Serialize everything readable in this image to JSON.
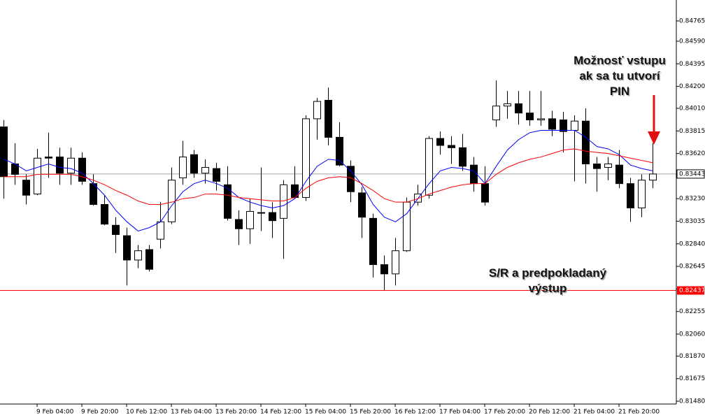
{
  "chart_data": {
    "type": "candlestick",
    "categories": [
      null,
      null,
      null,
      "9 Feb 04:00",
      null,
      null,
      null,
      "9 Feb 20:00",
      null,
      null,
      null,
      "10 Feb 12:00",
      null,
      null,
      null,
      "13 Feb 04:00",
      null,
      null,
      null,
      "13 Feb 20:00",
      null,
      null,
      null,
      "14 Feb 12:00",
      null,
      null,
      null,
      "15 Feb 04:00",
      null,
      null,
      null,
      "15 Feb 20:00",
      null,
      null,
      null,
      "16 Feb 12:00",
      null,
      null,
      null,
      "17 Feb 04:00",
      null,
      null,
      null,
      "17 Feb 20:00",
      null,
      null,
      null,
      "20 Feb 12:00",
      null,
      null,
      null,
      "21 Feb 04:00",
      null,
      null,
      null,
      "21 Feb 20:00",
      null,
      null,
      null
    ],
    "open": [
      0.8385,
      0.8353,
      0.8339,
      0.8327,
      0.8359,
      0.8359,
      0.8345,
      0.8358,
      0.8336,
      0.8318,
      0.83,
      0.8291,
      0.827,
      0.8279,
      0.8288,
      0.8303,
      0.8341,
      0.8361,
      0.8345,
      0.8349,
      0.8335,
      0.8305,
      0.8297,
      0.8311,
      0.8311,
      0.8306,
      0.8335,
      0.8324,
      0.8392,
      0.8408,
      0.8376,
      0.8351,
      0.8328,
      0.8306,
      0.8266,
      0.8258,
      0.8278,
      0.832,
      0.8326,
      0.8375,
      0.8369,
      0.8367,
      0.8352,
      0.8336,
      0.8391,
      0.8403,
      0.8405,
      0.8397,
      0.8391,
      0.8392,
      0.8391,
      0.8382,
      0.839,
      0.8353,
      0.835,
      0.8352,
      0.8336,
      0.8315,
      0.8339
    ],
    "high": [
      0.8391,
      0.8371,
      0.8344,
      0.8366,
      0.838,
      0.8367,
      0.8367,
      0.8363,
      0.8344,
      0.8326,
      0.8307,
      0.8298,
      0.8283,
      0.8283,
      0.832,
      0.835,
      0.8373,
      0.8365,
      0.8357,
      0.8354,
      0.8351,
      0.8313,
      0.8323,
      0.835,
      0.832,
      0.8339,
      0.8351,
      0.8395,
      0.841,
      0.8419,
      0.8389,
      0.8356,
      0.8333,
      0.831,
      0.8274,
      0.8289,
      0.8324,
      0.8335,
      0.8377,
      0.8381,
      0.8377,
      0.8379,
      0.8359,
      0.8351,
      0.8425,
      0.8416,
      0.8416,
      0.8416,
      0.8416,
      0.8399,
      0.8398,
      0.8395,
      0.8401,
      0.8359,
      0.8359,
      0.8365,
      0.8341,
      0.8344,
      0.8371
    ],
    "low": [
      0.8323,
      0.8335,
      0.8318,
      0.8326,
      0.8341,
      0.8335,
      0.8335,
      0.8335,
      0.8317,
      0.83,
      0.8276,
      0.8248,
      0.8263,
      0.826,
      0.828,
      0.8301,
      0.8335,
      0.8341,
      0.8336,
      0.833,
      0.8304,
      0.8283,
      0.8284,
      0.8295,
      0.8289,
      0.8271,
      0.8323,
      0.8321,
      0.8374,
      0.8369,
      0.8351,
      0.832,
      0.8289,
      0.8255,
      0.8244,
      0.8248,
      0.8277,
      0.8317,
      0.8323,
      0.8361,
      0.8353,
      0.8347,
      0.8329,
      0.8317,
      0.8385,
      0.8392,
      0.8387,
      0.8386,
      0.8386,
      0.8377,
      0.8363,
      0.8338,
      0.8336,
      0.8329,
      0.8339,
      0.8332,
      0.8303,
      0.8307,
      0.8332
    ],
    "close": [
      0.8342,
      0.8344,
      0.8326,
      0.8358,
      0.8358,
      0.8345,
      0.8358,
      0.8338,
      0.8318,
      0.8301,
      0.8292,
      0.827,
      0.8278,
      0.8262,
      0.8303,
      0.8339,
      0.8359,
      0.8345,
      0.835,
      0.8338,
      0.8306,
      0.8297,
      0.8312,
      0.8311,
      0.8304,
      0.8335,
      0.8324,
      0.8392,
      0.8407,
      0.8376,
      0.8352,
      0.8329,
      0.8307,
      0.8266,
      0.8258,
      0.8278,
      0.832,
      0.8327,
      0.8375,
      0.8369,
      0.8367,
      0.8351,
      0.8336,
      0.832,
      0.8403,
      0.8405,
      0.8397,
      0.8391,
      0.8392,
      0.8383,
      0.8381,
      0.839,
      0.8353,
      0.8349,
      0.8353,
      0.8336,
      0.8315,
      0.8339,
      0.83443
    ],
    "up_color": "#ffffff",
    "down_color": "#000000",
    "series": [
      {
        "color": "#0000ff",
        "values": [
          0.8357,
          0.8353,
          0.8347,
          0.835,
          0.8353,
          0.835,
          0.8349,
          0.8345,
          0.8336,
          0.8326,
          0.8313,
          0.8303,
          0.8295,
          0.8298,
          0.8303,
          0.8317,
          0.8329,
          0.8336,
          0.8339,
          0.8336,
          0.8332,
          0.8324,
          0.832,
          0.8317,
          0.8315,
          0.8317,
          0.8323,
          0.8338,
          0.8351,
          0.8357,
          0.8356,
          0.8347,
          0.8335,
          0.8318,
          0.8307,
          0.8303,
          0.831,
          0.8323,
          0.8336,
          0.8347,
          0.835,
          0.8349,
          0.8347,
          0.8336,
          0.8351,
          0.8365,
          0.8374,
          0.838,
          0.8382,
          0.8382,
          0.8382,
          0.8382,
          0.8376,
          0.8368,
          0.8366,
          0.8361,
          0.8352,
          0.8349,
          0.8347
        ]
      },
      {
        "color": "#ff0000",
        "values": [
          0.8342,
          0.8342,
          0.8342,
          0.8344,
          0.8344,
          0.8344,
          0.8344,
          0.8342,
          0.8339,
          0.8335,
          0.833,
          0.8326,
          0.8321,
          0.8318,
          0.8318,
          0.832,
          0.8323,
          0.8324,
          0.8327,
          0.8327,
          0.8326,
          0.8324,
          0.8323,
          0.8322,
          0.8321,
          0.8321,
          0.8324,
          0.8332,
          0.8338,
          0.8341,
          0.8342,
          0.8341,
          0.8336,
          0.833,
          0.8323,
          0.832,
          0.832,
          0.8323,
          0.8327,
          0.833,
          0.8333,
          0.8335,
          0.8336,
          0.8336,
          0.8344,
          0.835,
          0.8354,
          0.8357,
          0.8359,
          0.8362,
          0.8365,
          0.8366,
          0.8364,
          0.8363,
          0.8362,
          0.836,
          0.8358,
          0.8356,
          0.8354
        ]
      }
    ],
    "ylim": [
      0.81456,
      0.84946
    ],
    "yticks": [
      0.84765,
      {
        "value": 0.8459,
        "label": "0.84590"
      },
      0.84395,
      {
        "value": 0.842,
        "label": "0.84200"
      },
      {
        "value": 0.8401,
        "label": "0.84010"
      },
      0.83815,
      {
        "value": 0.8362,
        "label": "0.83620"
      },
      {
        "value": 0.8323,
        "label": "0.83230"
      },
      0.83035,
      {
        "value": 0.8284,
        "label": "0.82840"
      },
      0.82645,
      {
        "value": 0.8245,
        "label": "0.82450"
      },
      0.82255,
      {
        "value": 0.8206,
        "label": "0.82060"
      },
      {
        "value": 0.8187,
        "label": "0.81870"
      },
      0.81675,
      {
        "value": 0.8148,
        "label": "0.81480"
      }
    ],
    "current_price": 0.83443,
    "level": {
      "value": 0.82437,
      "color": "#ff0000"
    },
    "annotations": [
      {
        "lines": [
          "Možnosť vstupu",
          "ak sa tu utvorí",
          "PIN"
        ]
      },
      {
        "lines": [
          "S/R a predpokladaný",
          "výstup"
        ]
      }
    ]
  }
}
